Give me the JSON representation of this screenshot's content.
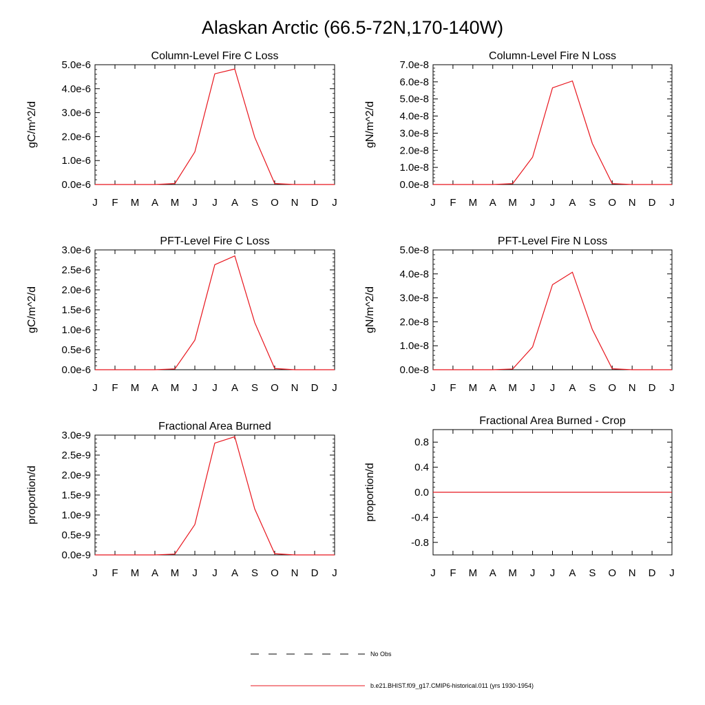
{
  "figure": {
    "title": "Alaskan Arctic (66.5-72N,170-140W)"
  },
  "chart_data": [
    {
      "type": "line",
      "title": "Column-Level Fire C Loss",
      "ylabel": "gC/m^2/d",
      "categories": [
        "J",
        "F",
        "M",
        "A",
        "M",
        "J",
        "J",
        "A",
        "S",
        "O",
        "N",
        "D",
        "J"
      ],
      "ylim": [
        0,
        5e-06
      ],
      "yticks": [
        0,
        1e-06,
        2e-06,
        3e-06,
        4e-06,
        5e-06
      ],
      "ytick_labels": [
        "0.0e-6",
        "1.0e-6",
        "2.0e-6",
        "3.0e-6",
        "4.0e-6",
        "5.0e-6"
      ],
      "series": [
        {
          "color": "#e8141c",
          "values": [
            0,
            0,
            0,
            0,
            4e-08,
            1.36e-06,
            4.62e-06,
            4.82e-06,
            1.97e-06,
            4e-08,
            0,
            0,
            0
          ]
        }
      ]
    },
    {
      "type": "line",
      "title": "Column-Level Fire N Loss",
      "ylabel": "gN/m^2/d",
      "categories": [
        "J",
        "F",
        "M",
        "A",
        "M",
        "J",
        "J",
        "A",
        "S",
        "O",
        "N",
        "D",
        "J"
      ],
      "ylim": [
        0,
        7e-08
      ],
      "yticks": [
        0,
        1e-08,
        2e-08,
        3e-08,
        4e-08,
        5e-08,
        6e-08,
        7e-08
      ],
      "ytick_labels": [
        "0.0e-8",
        "1.0e-8",
        "2.0e-8",
        "3.0e-8",
        "4.0e-8",
        "5.0e-8",
        "6.0e-8",
        "7.0e-8"
      ],
      "series": [
        {
          "color": "#e8141c",
          "values": [
            0,
            0,
            0,
            0,
            5e-10,
            1.6e-08,
            5.65e-08,
            6.05e-08,
            2.4e-08,
            5e-10,
            0,
            0,
            0
          ]
        }
      ]
    },
    {
      "type": "line",
      "title": "PFT-Level Fire C Loss",
      "ylabel": "gC/m^2/d",
      "categories": [
        "J",
        "F",
        "M",
        "A",
        "M",
        "J",
        "J",
        "A",
        "S",
        "O",
        "N",
        "D",
        "J"
      ],
      "ylim": [
        0,
        3e-06
      ],
      "yticks": [
        0,
        5e-07,
        1e-06,
        1.5e-06,
        2e-06,
        2.5e-06,
        3e-06
      ],
      "ytick_labels": [
        "0.0e-6",
        "0.5e-6",
        "1.0e-6",
        "1.5e-6",
        "2.0e-6",
        "2.5e-6",
        "3.0e-6"
      ],
      "series": [
        {
          "color": "#e8141c",
          "values": [
            0,
            0,
            0,
            0,
            2e-08,
            7.4e-07,
            2.63e-06,
            2.85e-06,
            1.18e-06,
            3e-08,
            0,
            0,
            0
          ]
        }
      ]
    },
    {
      "type": "line",
      "title": "PFT-Level Fire N Loss",
      "ylabel": "gN/m^2/d",
      "categories": [
        "J",
        "F",
        "M",
        "A",
        "M",
        "J",
        "J",
        "A",
        "S",
        "O",
        "N",
        "D",
        "J"
      ],
      "ylim": [
        0,
        5e-08
      ],
      "yticks": [
        0,
        1e-08,
        2e-08,
        3e-08,
        4e-08,
        5e-08
      ],
      "ytick_labels": [
        "0.0e-8",
        "1.0e-8",
        "2.0e-8",
        "3.0e-8",
        "4.0e-8",
        "5.0e-8"
      ],
      "series": [
        {
          "color": "#e8141c",
          "values": [
            0,
            0,
            0,
            0,
            3e-10,
            9.5e-09,
            3.55e-08,
            4.07e-08,
            1.68e-08,
            4e-10,
            0,
            0,
            0
          ]
        }
      ]
    },
    {
      "type": "line",
      "title": "Fractional Area Burned",
      "ylabel": "proportion/d",
      "categories": [
        "J",
        "F",
        "M",
        "A",
        "M",
        "J",
        "J",
        "A",
        "S",
        "O",
        "N",
        "D",
        "J"
      ],
      "ylim": [
        0,
        3e-09
      ],
      "yticks": [
        0,
        5e-10,
        1e-09,
        1.5e-09,
        2e-09,
        2.5e-09,
        3e-09
      ],
      "ytick_labels": [
        "0.0e-9",
        "0.5e-9",
        "1.0e-9",
        "1.5e-9",
        "2.0e-9",
        "2.5e-9",
        "3.0e-9"
      ],
      "series": [
        {
          "color": "#e8141c",
          "values": [
            0,
            0,
            0,
            0,
            2e-11,
            7.6e-10,
            2.8e-09,
            2.96e-09,
            1.15e-09,
            3e-11,
            0,
            0,
            0
          ]
        }
      ]
    },
    {
      "type": "line",
      "title": "Fractional Area Burned - Crop",
      "ylabel": "proportion/d",
      "categories": [
        "J",
        "F",
        "M",
        "A",
        "M",
        "J",
        "J",
        "A",
        "S",
        "O",
        "N",
        "D",
        "J"
      ],
      "ylim": [
        -1.0,
        1.0
      ],
      "yticks": [
        -0.8,
        -0.4,
        0.0,
        0.4,
        0.8
      ],
      "ytick_labels": [
        "-0.8",
        "-0.4",
        "0.0",
        "0.4",
        "0.8"
      ],
      "series": [
        {
          "color": "#e8141c",
          "values": [
            0,
            0,
            0,
            0,
            0,
            0,
            0,
            0,
            0,
            0,
            0,
            0,
            0
          ]
        }
      ]
    }
  ],
  "legend": {
    "items": [
      {
        "label": "No Obs",
        "color": "#000000",
        "style": "dashed"
      },
      {
        "label": "b.e21.BHIST.f09_g17.CMIP6-historical.011 (yrs 1930-1954)",
        "color": "#e8141c",
        "style": "solid"
      }
    ]
  }
}
